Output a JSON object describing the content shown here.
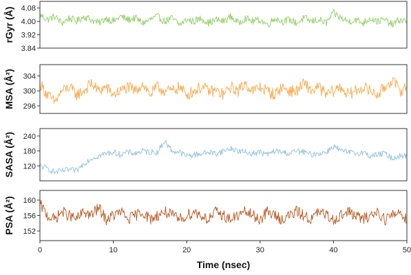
{
  "chart_data": [
    {
      "type": "line",
      "ylabel": "rGyr (Å)",
      "color": "#8cce62",
      "ylim": [
        3.84,
        4.12
      ],
      "yticks": [
        3.84,
        3.92,
        4.0,
        4.08
      ],
      "ytick_labels": [
        "3.84",
        "3.92",
        "4.00",
        "4.08"
      ],
      "xlim": [
        0,
        50
      ],
      "series": [
        {
          "x": [
            0,
            1,
            2,
            3,
            4,
            5,
            6,
            7,
            8,
            9,
            10,
            11,
            12,
            13,
            14,
            15,
            16,
            17,
            18,
            19,
            20,
            21,
            22,
            23,
            24,
            25,
            26,
            27,
            28,
            29,
            30,
            31,
            32,
            33,
            34,
            35,
            36,
            37,
            38,
            39,
            40,
            41,
            42,
            43,
            44,
            45,
            46,
            47,
            48,
            49,
            50
          ],
          "values": [
            4.04,
            4.01,
            4.03,
            3.99,
            4.02,
            4.0,
            4.03,
            4.01,
            3.99,
            4.02,
            4.0,
            4.03,
            4.01,
            4.02,
            3.99,
            4.01,
            4.03,
            4.0,
            4.02,
            3.98,
            4.01,
            4.0,
            4.02,
            3.99,
            4.01,
            4.0,
            4.03,
            3.99,
            4.02,
            4.0,
            4.01,
            3.98,
            4.02,
            4.0,
            4.01,
            3.99,
            4.02,
            4.0,
            4.01,
            3.99,
            4.05,
            4.02,
            4.0,
            4.01,
            3.99,
            4.02,
            4.0,
            4.01,
            3.98,
            4.01,
            4.0
          ]
        }
      ]
    },
    {
      "type": "line",
      "ylabel": "MSA (Å²)",
      "color": "#f5a94a",
      "ylim": [
        294,
        307
      ],
      "yticks": [
        296,
        300,
        304
      ],
      "ytick_labels": [
        "296",
        "300",
        "304"
      ],
      "xlim": [
        0,
        50
      ],
      "series": [
        {
          "x": [
            0,
            1,
            2,
            3,
            4,
            5,
            6,
            7,
            8,
            9,
            10,
            11,
            12,
            13,
            14,
            15,
            16,
            17,
            18,
            19,
            20,
            21,
            22,
            23,
            24,
            25,
            26,
            27,
            28,
            29,
            30,
            31,
            32,
            33,
            34,
            35,
            36,
            37,
            38,
            39,
            40,
            41,
            42,
            43,
            44,
            45,
            46,
            47,
            48,
            49,
            50
          ],
          "values": [
            302,
            299,
            297,
            300,
            301,
            299,
            300,
            302,
            300,
            301,
            299,
            300,
            301,
            300,
            302,
            299,
            301,
            300,
            300,
            301,
            299,
            300,
            301,
            300,
            300,
            299,
            301,
            300,
            302,
            300,
            301,
            300,
            299,
            301,
            300,
            300,
            302,
            300,
            301,
            299,
            300,
            301,
            299,
            300,
            301,
            300,
            299,
            301,
            303,
            300,
            301
          ]
        }
      ]
    },
    {
      "type": "line",
      "ylabel": "SASA (Å²)",
      "color": "#8ec0de",
      "ylim": [
        60,
        270
      ],
      "yticks": [
        120,
        180,
        240
      ],
      "ytick_labels": [
        "120",
        "180",
        "240"
      ],
      "xlim": [
        0,
        50
      ],
      "series": [
        {
          "x": [
            0,
            1,
            2,
            3,
            4,
            5,
            6,
            7,
            8,
            9,
            10,
            11,
            12,
            13,
            14,
            15,
            16,
            17,
            18,
            19,
            20,
            21,
            22,
            23,
            24,
            25,
            26,
            27,
            28,
            29,
            30,
            31,
            32,
            33,
            34,
            35,
            36,
            37,
            38,
            39,
            40,
            41,
            42,
            43,
            44,
            45,
            46,
            47,
            48,
            49,
            50
          ],
          "values": [
            120,
            110,
            95,
            100,
            105,
            100,
            130,
            150,
            160,
            170,
            175,
            165,
            175,
            170,
            180,
            175,
            175,
            220,
            180,
            175,
            160,
            165,
            170,
            175,
            170,
            180,
            190,
            180,
            175,
            170,
            175,
            165,
            180,
            175,
            170,
            180,
            175,
            165,
            170,
            175,
            200,
            180,
            175,
            170,
            175,
            160,
            165,
            170,
            150,
            160,
            160
          ]
        }
      ]
    },
    {
      "type": "line",
      "ylabel": "PSA (Å²)",
      "color": "#b5561f",
      "ylim": [
        149.5,
        162.5
      ],
      "yticks": [
        152,
        156,
        160
      ],
      "ytick_labels": [
        "152",
        "156",
        "160"
      ],
      "xlim": [
        0,
        50
      ],
      "xticks": [
        0,
        10,
        20,
        30,
        40,
        50
      ],
      "xtick_labels": [
        "0",
        "10",
        "20",
        "30",
        "40",
        "50"
      ],
      "xlabel": "Time (nsec)",
      "series": [
        {
          "x": [
            0,
            1,
            2,
            3,
            4,
            5,
            6,
            7,
            8,
            9,
            10,
            11,
            12,
            13,
            14,
            15,
            16,
            17,
            18,
            19,
            20,
            21,
            22,
            23,
            24,
            25,
            26,
            27,
            28,
            29,
            30,
            31,
            32,
            33,
            34,
            35,
            36,
            37,
            38,
            39,
            40,
            41,
            42,
            43,
            44,
            45,
            46,
            47,
            48,
            49,
            50
          ],
          "values": [
            159,
            156,
            155,
            157,
            156,
            155,
            157,
            156,
            158,
            155,
            156,
            157,
            155,
            156,
            157,
            155,
            156,
            157,
            156,
            155,
            156,
            157,
            156,
            155,
            157,
            156,
            155,
            156,
            157,
            156,
            155,
            157,
            156,
            155,
            156,
            157,
            156,
            155,
            157,
            156,
            155,
            156,
            157,
            156,
            155,
            156,
            157,
            155,
            156,
            157,
            155
          ]
        }
      ]
    }
  ]
}
